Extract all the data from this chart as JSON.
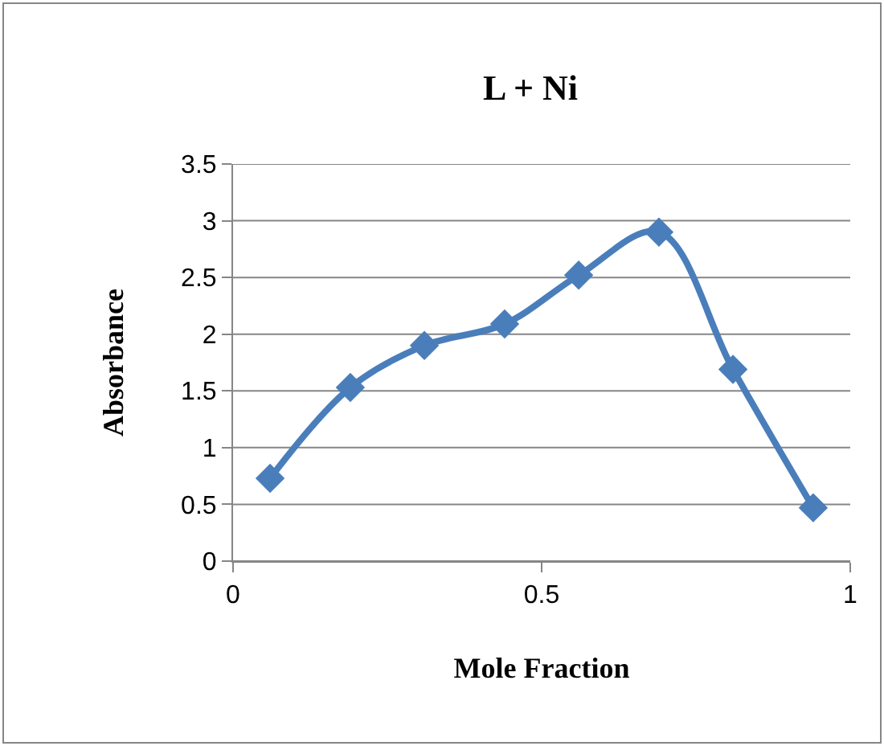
{
  "chart_data": {
    "type": "line",
    "title": "L + Ni",
    "xlabel": "Mole Fraction",
    "ylabel": "Absorbance",
    "xlim": [
      0,
      1
    ],
    "xticks": [
      0,
      0.5,
      1
    ],
    "ylim": [
      0,
      3.5
    ],
    "yticks": [
      0,
      0.5,
      1,
      1.5,
      2,
      2.5,
      3,
      3.5
    ],
    "grid": "y",
    "marker": "diamond",
    "line_style": "solid",
    "series": [
      {
        "color": "#4a7ebb",
        "x": [
          0.06,
          0.19,
          0.31,
          0.44,
          0.56,
          0.69,
          0.81,
          0.94
        ],
        "values": [
          0.73,
          1.53,
          1.9,
          2.09,
          2.52,
          2.9,
          1.69,
          0.47
        ]
      }
    ]
  }
}
